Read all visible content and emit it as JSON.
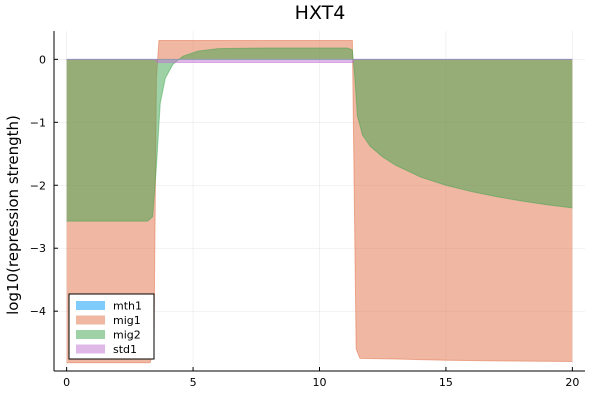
{
  "chart_data": {
    "type": "area",
    "title": "HXT4",
    "xlabel": "",
    "ylabel": "log10(repression strength)",
    "xlim": [
      -0.5,
      20.5
    ],
    "ylim": [
      -4.95,
      0.45
    ],
    "xticks": [
      0,
      5,
      10,
      15,
      20
    ],
    "xtick_labels": [
      "0",
      "5",
      "10",
      "15",
      "20"
    ],
    "yticks": [
      0,
      -1,
      -2,
      -3,
      -4
    ],
    "ytick_labels": [
      "0",
      "−1",
      "−2",
      "−3",
      "−4"
    ],
    "grid": true,
    "legend_position": "bottom-left",
    "series": [
      {
        "name": "mth1",
        "color": "#009AFA",
        "x": [
          0,
          3.5,
          11.4,
          20
        ],
        "values": [
          0,
          0,
          0,
          0
        ]
      },
      {
        "name": "mig1",
        "color": "#E26F46",
        "x": [
          0,
          3.3,
          3.45,
          3.55,
          3.65,
          11.3,
          11.45,
          11.6,
          13,
          15,
          17,
          20
        ],
        "values": [
          -4.82,
          -4.82,
          -4.6,
          -0.3,
          0.3,
          0.3,
          -4.6,
          -4.75,
          -4.76,
          -4.78,
          -4.79,
          -4.8
        ]
      },
      {
        "name": "mig2",
        "color": "#3DA44D",
        "x": [
          0,
          3.2,
          3.4,
          3.55,
          3.7,
          3.9,
          4.2,
          4.6,
          5.2,
          6,
          8,
          11.1,
          11.3,
          11.4,
          11.5,
          11.7,
          12,
          12.5,
          13,
          14,
          15,
          16,
          17,
          18,
          19,
          20
        ],
        "values": [
          -2.57,
          -2.57,
          -2.5,
          -1.7,
          -0.7,
          -0.3,
          -0.08,
          0.05,
          0.13,
          0.17,
          0.18,
          0.18,
          0.15,
          -0.3,
          -0.9,
          -1.2,
          -1.38,
          -1.55,
          -1.68,
          -1.87,
          -2.0,
          -2.1,
          -2.18,
          -2.25,
          -2.31,
          -2.36
        ]
      },
      {
        "name": "std1",
        "color": "#C271D2",
        "x": [
          0,
          3.5,
          3.6,
          11.3,
          11.4,
          20
        ],
        "values": [
          0,
          0,
          -0.05,
          -0.05,
          0,
          0
        ]
      }
    ]
  }
}
